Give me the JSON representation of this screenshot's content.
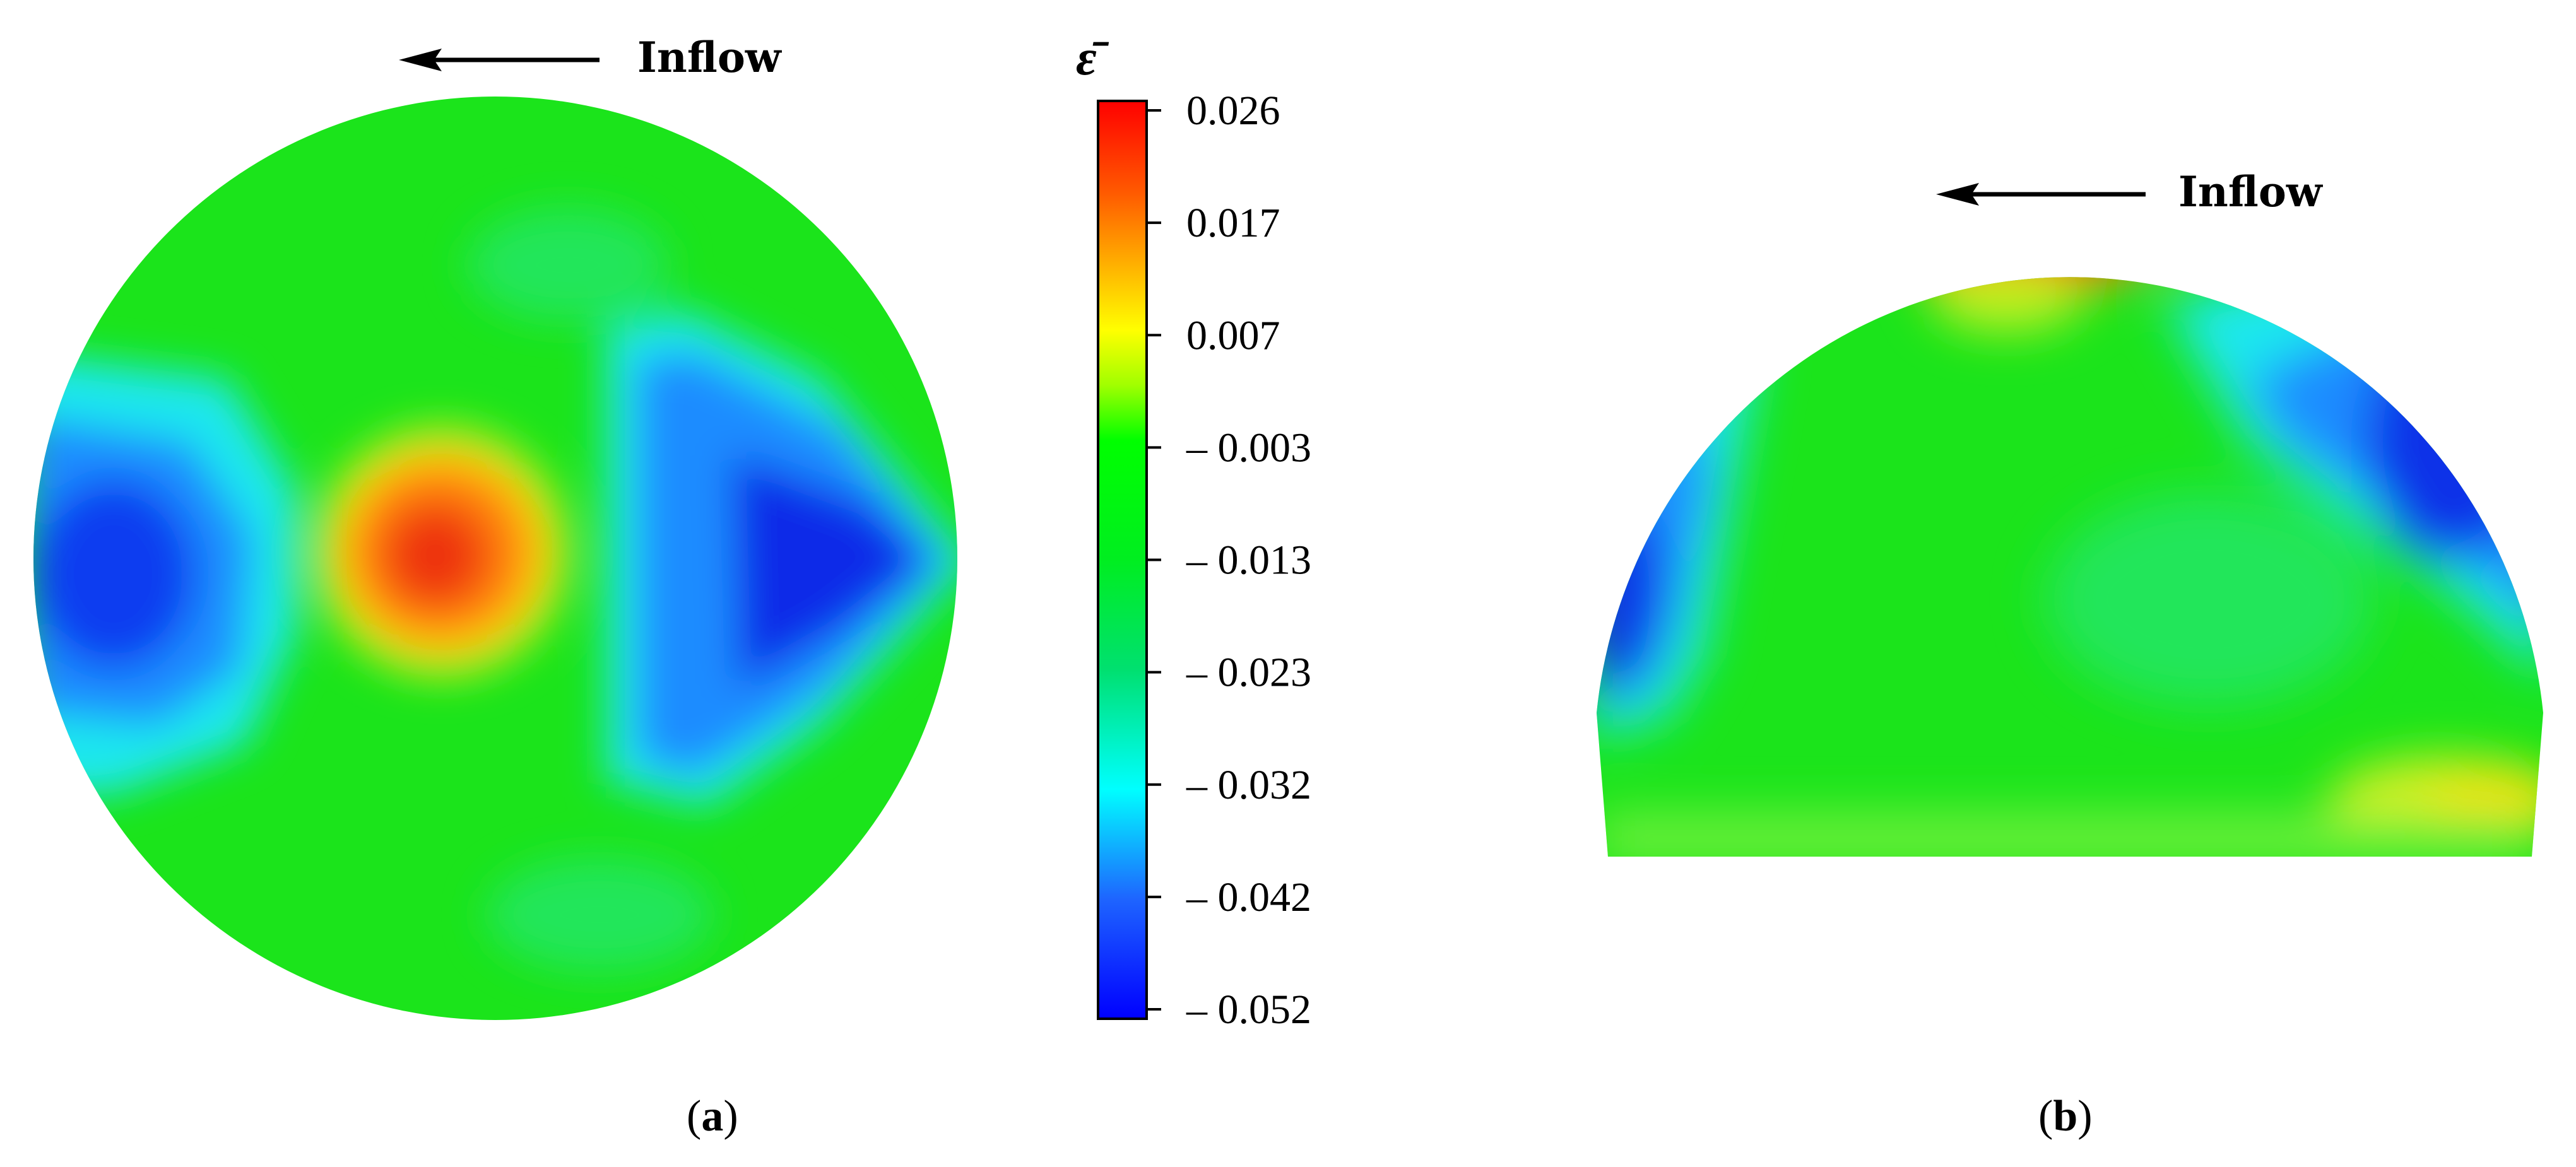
{
  "panel_a": {
    "inflow_label": "Inflow",
    "caption_open": "(",
    "caption_letter": "a",
    "caption_close": ")"
  },
  "panel_b": {
    "inflow_label": "Inflow",
    "caption_open": "(",
    "caption_letter": "b",
    "caption_close": ")"
  },
  "colorbar": {
    "title": "ε̄",
    "ticks": [
      "0.026",
      "0.017",
      "0.007",
      "– 0.003",
      "– 0.013",
      "– 0.023",
      "– 0.032",
      "– 0.042",
      "– 0.052"
    ],
    "colors": [
      "#ff0000",
      "#ff8c00",
      "#ffff00",
      "#00ff00",
      "#00ee20",
      "#00e070",
      "#00ffff",
      "#1e64ff",
      "#0000ff"
    ]
  },
  "colors": {
    "field_base": "#1be41b",
    "strong_red": "#f03a0f",
    "orange": "#ff9000",
    "yellow": "#e8ff20",
    "cyan": "#1ee8ee",
    "light_blue": "#1a8cff",
    "deep_blue": "#0a2ae8"
  }
}
